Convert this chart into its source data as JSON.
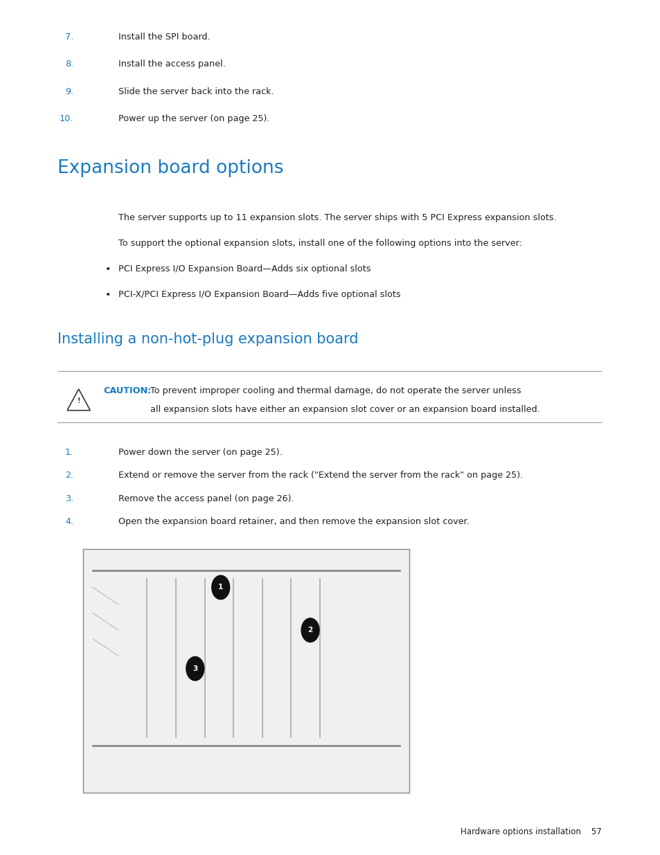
{
  "bg_color": "#ffffff",
  "blue_color": "#1a7abf",
  "black_color": "#231f20",
  "link_color": "#1a7abf",
  "numbered_items_top": [
    {
      "num": "7.",
      "text": "Install the SPI board."
    },
    {
      "num": "8.",
      "text": "Install the access panel."
    },
    {
      "num": "9.",
      "text": "Slide the server back into the rack."
    },
    {
      "num": "10.",
      "text": "Power up the server (on page 25)."
    }
  ],
  "section1_title": "Expansion board options",
  "section1_body1": "The server supports up to 11 expansion slots. The server ships with 5 PCI Express expansion slots.",
  "section1_body2": "To support the optional expansion slots, install one of the following options into the server:",
  "section1_bullets": [
    "PCI Express I/O Expansion Board—Adds six optional slots",
    "PCI-X/PCI Express I/O Expansion Board—Adds five optional slots"
  ],
  "section2_title": "Installing a non-hot-plug expansion board",
  "caution_label": "CAUTION:",
  "caution_line1": "To prevent improper cooling and thermal damage, do not operate the server unless",
  "caution_line2": "all expansion slots have either an expansion slot cover or an expansion board installed.",
  "numbered_items_bottom": [
    {
      "num": "1.",
      "text": "Power down the server (on page 25)."
    },
    {
      "num": "2.",
      "text": "Extend or remove the server from the rack (\"Extend the server from the rack\" on page 25)."
    },
    {
      "num": "3.",
      "text": "Remove the access panel (on page 26)."
    },
    {
      "num": "4.",
      "text": "Open the expansion board retainer, and then remove the expansion slot cover."
    }
  ],
  "footer_text": "Hardware options installation    57"
}
